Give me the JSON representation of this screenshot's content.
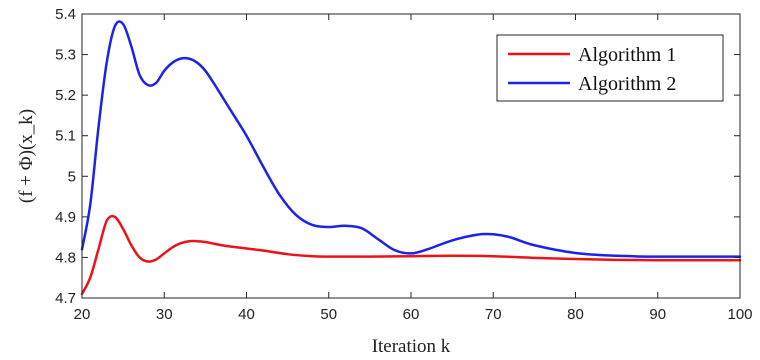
{
  "chart_data": {
    "type": "line",
    "title": "",
    "xlabel": "Iteration k",
    "ylabel": "(f + Φ)(x_k)",
    "xlim": [
      20,
      100
    ],
    "ylim": [
      4.7,
      5.4
    ],
    "xticks": [
      "20",
      "30",
      "40",
      "50",
      "60",
      "70",
      "80",
      "90",
      "100"
    ],
    "yticks": [
      "4.7",
      "4.8",
      "4.9",
      "5",
      "5.1",
      "5.2",
      "5.3",
      "5.4"
    ],
    "grid": false,
    "legend_position": "top-right",
    "series": [
      {
        "name": "Algorithm 1",
        "color": "#e8141a",
        "x": [
          20,
          21,
          22,
          23,
          24,
          25,
          26,
          27,
          28,
          29,
          30,
          31,
          32,
          33,
          34,
          35,
          36,
          37,
          38,
          40,
          42,
          45,
          48,
          50,
          55,
          60,
          65,
          70,
          75,
          80,
          85,
          90,
          95,
          100
        ],
        "y": [
          4.71,
          4.75,
          4.82,
          4.89,
          4.9,
          4.87,
          4.83,
          4.8,
          4.79,
          4.795,
          4.81,
          4.825,
          4.835,
          4.84,
          4.84,
          4.838,
          4.834,
          4.83,
          4.827,
          4.822,
          4.817,
          4.808,
          4.803,
          4.802,
          4.802,
          4.803,
          4.804,
          4.803,
          4.799,
          4.796,
          4.794,
          4.793,
          4.793,
          4.793
        ]
      },
      {
        "name": "Algorithm 2",
        "color": "#1c23e8",
        "x": [
          20,
          21,
          22,
          23,
          24,
          25,
          26,
          27,
          28,
          29,
          30,
          31,
          32,
          33,
          34,
          35,
          36,
          38,
          40,
          42,
          44,
          46,
          48,
          50,
          52,
          54,
          56,
          58,
          60,
          62,
          65,
          68,
          70,
          72,
          75,
          80,
          85,
          90,
          95,
          100
        ],
        "y": [
          4.82,
          4.93,
          5.12,
          5.28,
          5.37,
          5.375,
          5.32,
          5.25,
          5.225,
          5.23,
          5.26,
          5.28,
          5.29,
          5.29,
          5.28,
          5.26,
          5.23,
          5.165,
          5.1,
          5.025,
          4.955,
          4.905,
          4.88,
          4.875,
          4.878,
          4.872,
          4.845,
          4.818,
          4.81,
          4.82,
          4.842,
          4.856,
          4.857,
          4.85,
          4.83,
          4.811,
          4.804,
          4.802,
          4.802,
          4.802
        ]
      }
    ]
  }
}
